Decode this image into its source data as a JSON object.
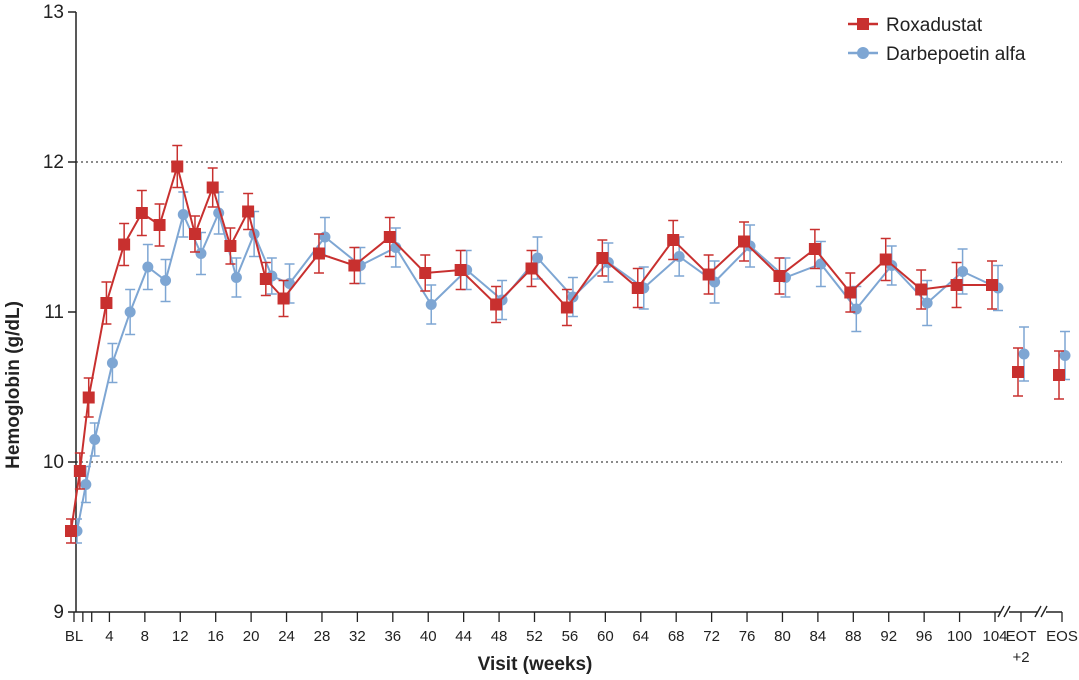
{
  "chart_data": {
    "type": "line",
    "xlabel": "Visit (weeks)",
    "ylabel": "Hemoglobin (g/dL)",
    "ylim": [
      9,
      13
    ],
    "yticks": [
      "9",
      "10",
      "11",
      "12",
      "13"
    ],
    "reference_lines": [
      10,
      12
    ],
    "legend_position": "top-right",
    "x_tick_labels": [
      {
        "x": 0,
        "label": "BL"
      },
      {
        "x": 4,
        "label": "4"
      },
      {
        "x": 8,
        "label": "8"
      },
      {
        "x": 12,
        "label": "12"
      },
      {
        "x": 16,
        "label": "16"
      },
      {
        "x": 20,
        "label": "20"
      },
      {
        "x": 24,
        "label": "24"
      },
      {
        "x": 28,
        "label": "28"
      },
      {
        "x": 32,
        "label": "32"
      },
      {
        "x": 36,
        "label": "36"
      },
      {
        "x": 40,
        "label": "40"
      },
      {
        "x": 44,
        "label": "44"
      },
      {
        "x": 48,
        "label": "48"
      },
      {
        "x": 52,
        "label": "52"
      },
      {
        "x": 56,
        "label": "56"
      },
      {
        "x": 60,
        "label": "60"
      },
      {
        "x": 64,
        "label": "64"
      },
      {
        "x": 68,
        "label": "68"
      },
      {
        "x": 72,
        "label": "72"
      },
      {
        "x": 76,
        "label": "76"
      },
      {
        "x": 80,
        "label": "80"
      },
      {
        "x": 84,
        "label": "84"
      },
      {
        "x": 88,
        "label": "88"
      },
      {
        "x": 92,
        "label": "92"
      },
      {
        "x": 96,
        "label": "96"
      },
      {
        "x": 100,
        "label": "100"
      },
      {
        "x": 104,
        "label": "104"
      }
    ],
    "extra_categories": [
      {
        "key": "EOT",
        "label_line1": "EOT",
        "label_line2": "+2"
      },
      {
        "key": "EOS",
        "label_line1": "EOS",
        "label_line2": ""
      }
    ],
    "x_minor_ticks": [
      1,
      2
    ],
    "series": [
      {
        "name": "Roxadustat",
        "color": "#c8302f",
        "marker": "square",
        "points": [
          {
            "x": 0,
            "y": 9.54,
            "err": 0.08
          },
          {
            "x": 1,
            "y": 9.94,
            "err": 0.12
          },
          {
            "x": 2,
            "y": 10.43,
            "err": 0.13
          },
          {
            "x": 4,
            "y": 11.06,
            "err": 0.14
          },
          {
            "x": 6,
            "y": 11.45,
            "err": 0.14
          },
          {
            "x": 8,
            "y": 11.66,
            "err": 0.15
          },
          {
            "x": 10,
            "y": 11.58,
            "err": 0.14
          },
          {
            "x": 12,
            "y": 11.97,
            "err": 0.14
          },
          {
            "x": 14,
            "y": 11.52,
            "err": 0.12
          },
          {
            "x": 16,
            "y": 11.83,
            "err": 0.13
          },
          {
            "x": 18,
            "y": 11.44,
            "err": 0.12
          },
          {
            "x": 20,
            "y": 11.67,
            "err": 0.12
          },
          {
            "x": 22,
            "y": 11.22,
            "err": 0.11
          },
          {
            "x": 24,
            "y": 11.09,
            "err": 0.12
          },
          {
            "x": 28,
            "y": 11.39,
            "err": 0.13
          },
          {
            "x": 32,
            "y": 11.31,
            "err": 0.12
          },
          {
            "x": 36,
            "y": 11.5,
            "err": 0.13
          },
          {
            "x": 40,
            "y": 11.26,
            "err": 0.12
          },
          {
            "x": 44,
            "y": 11.28,
            "err": 0.13
          },
          {
            "x": 48,
            "y": 11.05,
            "err": 0.12
          },
          {
            "x": 52,
            "y": 11.29,
            "err": 0.12
          },
          {
            "x": 56,
            "y": 11.03,
            "err": 0.12
          },
          {
            "x": 60,
            "y": 11.36,
            "err": 0.12
          },
          {
            "x": 64,
            "y": 11.16,
            "err": 0.13
          },
          {
            "x": 68,
            "y": 11.48,
            "err": 0.13
          },
          {
            "x": 72,
            "y": 11.25,
            "err": 0.13
          },
          {
            "x": 76,
            "y": 11.47,
            "err": 0.13
          },
          {
            "x": 80,
            "y": 11.24,
            "err": 0.12
          },
          {
            "x": 84,
            "y": 11.42,
            "err": 0.13
          },
          {
            "x": 88,
            "y": 11.13,
            "err": 0.13
          },
          {
            "x": 92,
            "y": 11.35,
            "err": 0.14
          },
          {
            "x": 96,
            "y": 11.15,
            "err": 0.13
          },
          {
            "x": 100,
            "y": 11.18,
            "err": 0.15
          },
          {
            "x": 104,
            "y": 11.18,
            "err": 0.16
          },
          {
            "x": "EOT",
            "y": 10.6,
            "err": 0.16
          },
          {
            "x": "EOS",
            "y": 10.58,
            "err": 0.16
          }
        ]
      },
      {
        "name": "Darbepoetin alfa",
        "color": "#7ea6d3",
        "marker": "circle",
        "points": [
          {
            "x": 0,
            "y": 9.54,
            "err": 0.08
          },
          {
            "x": 1,
            "y": 9.85,
            "err": 0.12
          },
          {
            "x": 2,
            "y": 10.15,
            "err": 0.11
          },
          {
            "x": 4,
            "y": 10.66,
            "err": 0.13
          },
          {
            "x": 6,
            "y": 11.0,
            "err": 0.15
          },
          {
            "x": 8,
            "y": 11.3,
            "err": 0.15
          },
          {
            "x": 10,
            "y": 11.21,
            "err": 0.14
          },
          {
            "x": 12,
            "y": 11.65,
            "err": 0.15
          },
          {
            "x": 14,
            "y": 11.39,
            "err": 0.14
          },
          {
            "x": 16,
            "y": 11.66,
            "err": 0.14
          },
          {
            "x": 18,
            "y": 11.23,
            "err": 0.13
          },
          {
            "x": 20,
            "y": 11.52,
            "err": 0.15
          },
          {
            "x": 22,
            "y": 11.24,
            "err": 0.12
          },
          {
            "x": 24,
            "y": 11.19,
            "err": 0.13
          },
          {
            "x": 28,
            "y": 11.5,
            "err": 0.13
          },
          {
            "x": 32,
            "y": 11.31,
            "err": 0.12
          },
          {
            "x": 36,
            "y": 11.43,
            "err": 0.13
          },
          {
            "x": 40,
            "y": 11.05,
            "err": 0.13
          },
          {
            "x": 44,
            "y": 11.28,
            "err": 0.13
          },
          {
            "x": 48,
            "y": 11.08,
            "err": 0.13
          },
          {
            "x": 52,
            "y": 11.36,
            "err": 0.14
          },
          {
            "x": 56,
            "y": 11.1,
            "err": 0.13
          },
          {
            "x": 60,
            "y": 11.33,
            "err": 0.13
          },
          {
            "x": 64,
            "y": 11.16,
            "err": 0.14
          },
          {
            "x": 68,
            "y": 11.37,
            "err": 0.13
          },
          {
            "x": 72,
            "y": 11.2,
            "err": 0.14
          },
          {
            "x": 76,
            "y": 11.44,
            "err": 0.14
          },
          {
            "x": 80,
            "y": 11.23,
            "err": 0.13
          },
          {
            "x": 84,
            "y": 11.32,
            "err": 0.15
          },
          {
            "x": 88,
            "y": 11.02,
            "err": 0.15
          },
          {
            "x": 92,
            "y": 11.31,
            "err": 0.13
          },
          {
            "x": 96,
            "y": 11.06,
            "err": 0.15
          },
          {
            "x": 100,
            "y": 11.27,
            "err": 0.15
          },
          {
            "x": 104,
            "y": 11.16,
            "err": 0.15
          },
          {
            "x": "EOT",
            "y": 10.72,
            "err": 0.18
          },
          {
            "x": "EOS",
            "y": 10.71,
            "err": 0.16
          }
        ]
      }
    ]
  }
}
